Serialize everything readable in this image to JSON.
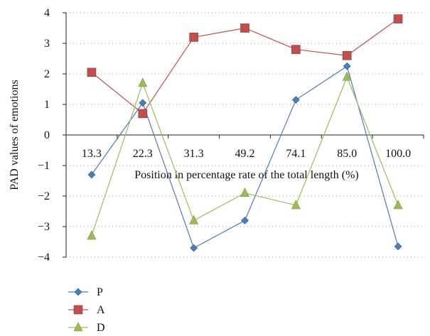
{
  "chart_data": {
    "type": "line",
    "title": "",
    "xlabel": "Position in percentage rate of the total length (%)",
    "ylabel": "PAD values of emotions",
    "categories": [
      "13.3",
      "22.3",
      "31.3",
      "49.2",
      "74.1",
      "85.0",
      "100.0"
    ],
    "ylim": [
      -4,
      4
    ],
    "yticks": [
      "4",
      "3",
      "2",
      "1",
      "0",
      "−1",
      "−2",
      "−3",
      "−4"
    ],
    "ytick_values": [
      4,
      3,
      2,
      1,
      0,
      -1,
      -2,
      -3,
      -4
    ],
    "grid": true,
    "legend_position": "bottom-left",
    "series": [
      {
        "name": "P",
        "color": "#4a7ebb",
        "marker": "diamond",
        "values": [
          -1.3,
          1.05,
          -3.7,
          -2.8,
          1.15,
          2.25,
          -3.65
        ]
      },
      {
        "name": "A",
        "color": "#c0504d",
        "marker": "square",
        "values": [
          2.05,
          0.7,
          3.2,
          3.5,
          2.8,
          2.6,
          3.8
        ]
      },
      {
        "name": "D",
        "color": "#9bbb59",
        "marker": "triangle",
        "values": [
          -3.3,
          1.7,
          -2.8,
          -1.9,
          -2.3,
          1.9,
          -2.3
        ]
      }
    ]
  }
}
